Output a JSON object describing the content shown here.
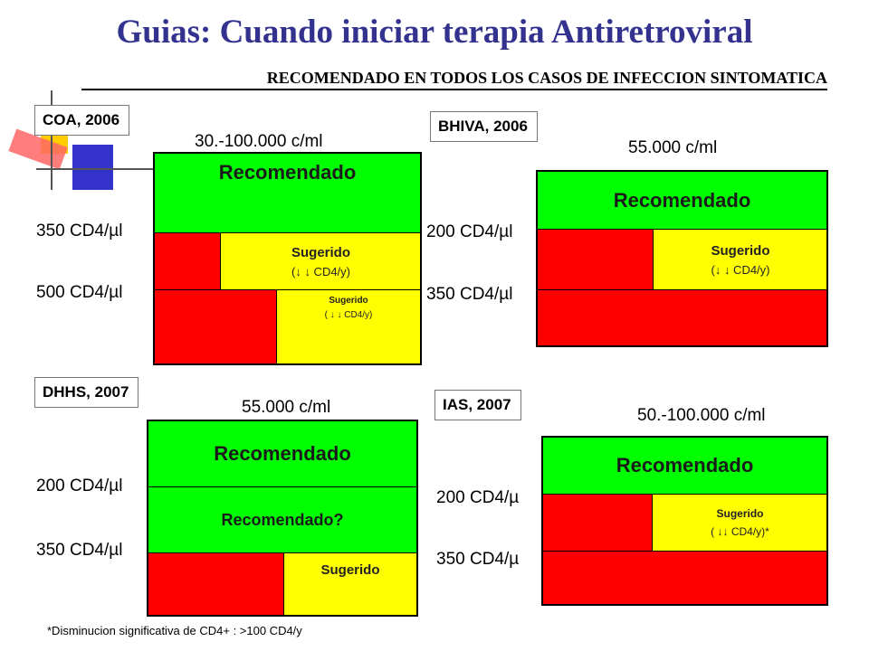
{
  "title": "Guias: Cuando iniciar terapia Antiretroviral",
  "subtitle": "RECOMENDADO EN TODOS LOS CASOS DE INFECCION SINTOMATICA",
  "guidelines": [
    {
      "tag": "COA, 2006",
      "viral_load": "30.-100.000 c/ml",
      "threshold_high": "350 CD4/µl",
      "threshold_low": "500 CD4/µl",
      "top": "Recomendado",
      "mid": "Sugerido",
      "mid_sub": "(↓ ↓ CD4/y)",
      "bottom": "Sugerido",
      "bottom_sub": "( ↓ ↓ CD4/y)"
    },
    {
      "tag": "BHIVA, 2006",
      "viral_load": "55.000 c/ml",
      "threshold_high": "200 CD4/µl",
      "threshold_low": "350 CD4/µl",
      "top": "Recomendado",
      "mid": "Sugerido",
      "mid_sub": "(↓ ↓ CD4/y)"
    },
    {
      "tag": "DHHS, 2007",
      "viral_load": "55.000 c/ml",
      "threshold_high": "200 CD4/µl",
      "threshold_low": "350 CD4/µl",
      "top": "Recomendado",
      "mid": "Recomendado?",
      "bottom": "Sugerido"
    },
    {
      "tag": "IAS, 2007",
      "viral_load": "50.-100.000 c/ml",
      "threshold_high": "200 CD4/µ",
      "threshold_low": "350 CD4/µ",
      "top": "Recomendado",
      "mid": "Sugerido",
      "mid_sub": "( ↓↓ CD4/y)*"
    }
  ],
  "footnote": "*Disminucion significativa de CD4+ : >100 CD4/y",
  "colors": {
    "title": "#33338f",
    "green": "#00ff00",
    "yellow": "#ffff00",
    "red": "#ff0000"
  }
}
